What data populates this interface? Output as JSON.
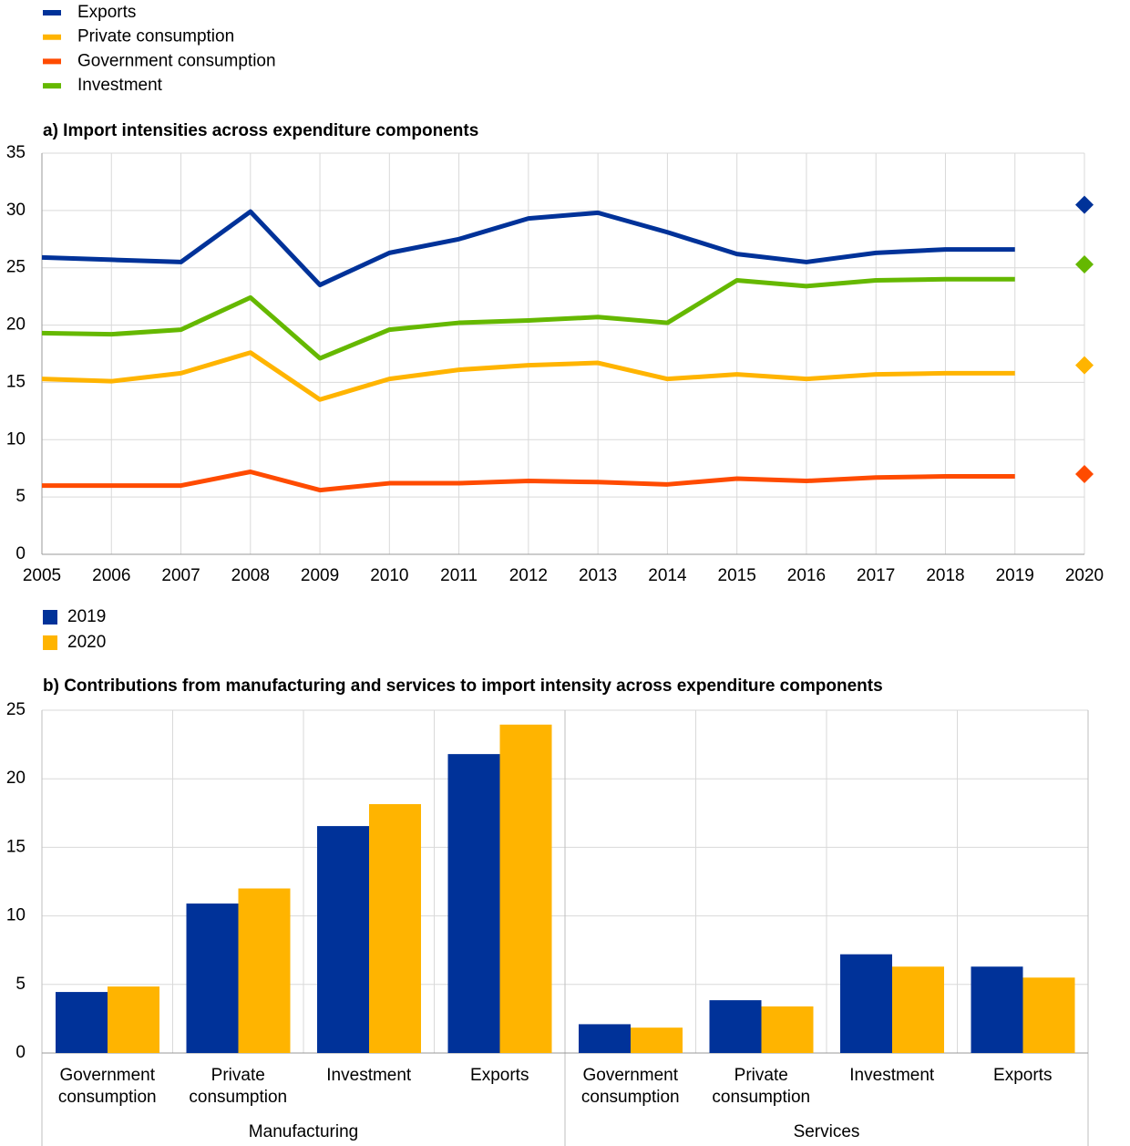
{
  "chart_data": [
    {
      "type": "line",
      "title": "a) Import intensities across expenditure components",
      "x": [
        2005,
        2006,
        2007,
        2008,
        2009,
        2010,
        2011,
        2012,
        2013,
        2014,
        2015,
        2016,
        2017,
        2018,
        2019,
        2020
      ],
      "xlim": [
        2005,
        2020
      ],
      "xticks": [
        2005,
        2006,
        2007,
        2008,
        2009,
        2010,
        2011,
        2012,
        2013,
        2014,
        2015,
        2016,
        2017,
        2018,
        2019,
        2020
      ],
      "ylim": [
        0,
        35
      ],
      "yticks": [
        0,
        5,
        10,
        15,
        20,
        25,
        30,
        35
      ],
      "grid": true,
      "last_point_marker": "diamond",
      "series": [
        {
          "name": "Exports",
          "color": "#003299",
          "values": [
            25.9,
            25.7,
            25.5,
            29.9,
            23.5,
            26.3,
            27.5,
            29.3,
            29.8,
            28.1,
            26.2,
            25.5,
            26.3,
            26.6,
            26.6,
            30.5
          ]
        },
        {
          "name": "Private consumption",
          "color": "#ffb400",
          "values": [
            15.3,
            15.1,
            15.8,
            17.6,
            13.5,
            15.3,
            16.1,
            16.5,
            16.7,
            15.3,
            15.7,
            15.3,
            15.7,
            15.8,
            15.8,
            16.5
          ]
        },
        {
          "name": "Government consumption",
          "color": "#ff4b00",
          "values": [
            6.0,
            6.0,
            6.0,
            7.2,
            5.6,
            6.2,
            6.2,
            6.4,
            6.3,
            6.1,
            6.6,
            6.4,
            6.7,
            6.8,
            6.8,
            7.0
          ]
        },
        {
          "name": "Investment",
          "color": "#65b800",
          "values": [
            19.3,
            19.2,
            19.6,
            22.4,
            17.1,
            19.6,
            20.2,
            20.4,
            20.7,
            20.2,
            23.9,
            23.4,
            23.9,
            24.0,
            24.0,
            25.3
          ]
        }
      ]
    },
    {
      "type": "bar",
      "title": "b) Contributions from manufacturing and services to import intensity across expenditure components",
      "categories": [
        "Government consumption",
        "Private consumption",
        "Investment",
        "Exports",
        "Government consumption",
        "Private consumption",
        "Investment",
        "Exports"
      ],
      "group_labels": [
        "Manufacturing",
        "Services"
      ],
      "ylim": [
        0,
        25
      ],
      "yticks": [
        0,
        5,
        10,
        15,
        20,
        25
      ],
      "grid": true,
      "series": [
        {
          "name": "2019",
          "color": "#003299",
          "values": [
            4.45,
            10.9,
            16.55,
            21.8,
            2.1,
            3.85,
            7.2,
            6.3
          ]
        },
        {
          "name": "2020",
          "color": "#ffb400",
          "values": [
            4.85,
            12.0,
            18.15,
            23.95,
            1.85,
            3.4,
            6.3,
            5.5
          ]
        }
      ]
    }
  ]
}
